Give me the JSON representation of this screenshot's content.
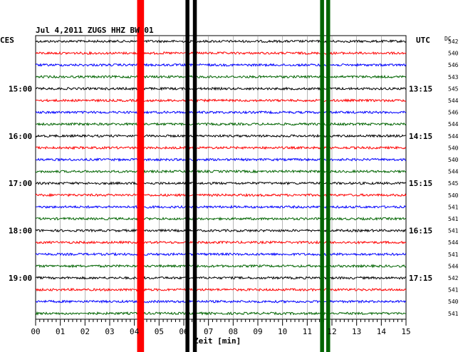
{
  "chart_data": {
    "type": "line",
    "title": "Jul 4,2011   ZUGS HHZ BW 01",
    "left_axis_label": "CES",
    "right_axis_label": "UTC",
    "right_col_header": "DC",
    "xlabel": "Zeit [min]",
    "xlim": [
      0,
      15
    ],
    "x_ticks": [
      "00",
      "01",
      "02",
      "03",
      "04",
      "05",
      "06",
      "07",
      "08",
      "09",
      "10",
      "11",
      "12",
      "13",
      "14",
      "15"
    ],
    "n_traces": 24,
    "trace_colors": [
      "#000000",
      "#ff0000",
      "#0000ff",
      "#006400"
    ],
    "left_hour_labels": [
      {
        "trace": 4,
        "text": "15:00"
      },
      {
        "trace": 8,
        "text": "16:00"
      },
      {
        "trace": 12,
        "text": "17:00"
      },
      {
        "trace": 16,
        "text": "18:00"
      },
      {
        "trace": 20,
        "text": "19:00"
      }
    ],
    "right_hour_labels": [
      {
        "trace": 4,
        "text": "13:15"
      },
      {
        "trace": 8,
        "text": "14:15"
      },
      {
        "trace": 12,
        "text": "15:15"
      },
      {
        "trace": 16,
        "text": "16:15"
      },
      {
        "trace": 20,
        "text": "17:15"
      }
    ],
    "dc_values": [
      "542",
      "540",
      "546",
      "543",
      "545",
      "544",
      "546",
      "544",
      "544",
      "540",
      "540",
      "544",
      "545",
      "540",
      "541",
      "541",
      "541",
      "544",
      "541",
      "544",
      "542",
      "541",
      "540",
      "541"
    ],
    "vertical_bands": [
      {
        "minute": 4.25,
        "color": "#ff0000",
        "width_min": 0.28
      },
      {
        "minute": 6.15,
        "color": "#000000",
        "width_min": 0.16
      },
      {
        "minute": 6.45,
        "color": "#000000",
        "width_min": 0.16
      },
      {
        "minute": 11.6,
        "color": "#006400",
        "width_min": 0.16
      },
      {
        "minute": 11.85,
        "color": "#006400",
        "width_min": 0.16
      }
    ]
  }
}
